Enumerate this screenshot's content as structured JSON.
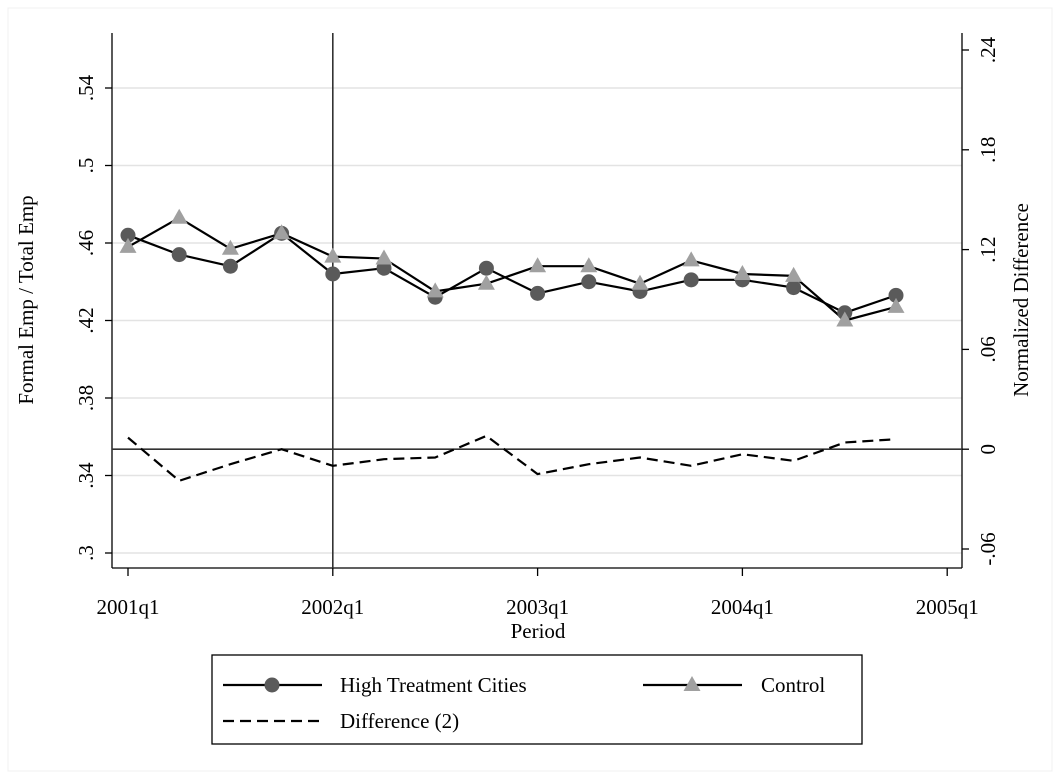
{
  "chart_data": {
    "type": "line",
    "xlabel": "Period",
    "ylabel": "Formal Emp / Total Emp",
    "y2label": "Normalized Difference",
    "x": [
      "2001q1",
      "2001q2",
      "2001q3",
      "2001q4",
      "2002q1",
      "2002q2",
      "2002q3",
      "2002q4",
      "2003q1",
      "2003q2",
      "2003q3",
      "2003q4",
      "2004q1",
      "2004q2",
      "2004q3",
      "2004q4"
    ],
    "x_ticks": [
      "2001q1",
      "2002q1",
      "2003q1",
      "2004q1",
      "2005q1"
    ],
    "xlim": [
      "2001q1",
      "2005q1"
    ],
    "ylim": [
      0.3,
      0.56
    ],
    "y_ticks": [
      0.3,
      0.34,
      0.38,
      0.42,
      0.46,
      0.5,
      0.54
    ],
    "y_tick_labels": [
      ".3",
      ".34",
      ".38",
      ".42",
      ".46",
      ".5",
      ".54"
    ],
    "y2lim": [
      -0.06,
      0.24
    ],
    "y2_ticks": [
      -0.06,
      0,
      0.06,
      0.12,
      0.18,
      0.24
    ],
    "y2_tick_labels": [
      "-.06",
      "0",
      ".06",
      ".12",
      ".18",
      ".24"
    ],
    "vertical_line_at": "2002q1",
    "horizontal_line_y2": 0,
    "grid": true,
    "legend_position": "bottom",
    "series": [
      {
        "name": "High Treatment Cities",
        "axis": "left",
        "marker": "circle",
        "line_style": "solid",
        "marker_color": "#5a5a5a",
        "values": [
          0.464,
          0.454,
          0.448,
          0.465,
          0.444,
          0.447,
          0.432,
          0.447,
          0.434,
          0.44,
          0.435,
          0.441,
          0.441,
          0.437,
          0.424,
          0.433
        ]
      },
      {
        "name": "Control",
        "axis": "left",
        "marker": "triangle",
        "line_style": "solid",
        "marker_color": "#a0a0a0",
        "values": [
          0.458,
          0.473,
          0.457,
          0.465,
          0.453,
          0.452,
          0.435,
          0.439,
          0.448,
          0.448,
          0.439,
          0.451,
          0.444,
          0.443,
          0.42,
          0.427
        ]
      },
      {
        "name": "Difference (2)",
        "axis": "right",
        "line_style": "dashed",
        "values": [
          0.007,
          -0.019,
          -0.009,
          0.0,
          -0.01,
          -0.006,
          -0.005,
          0.008,
          -0.015,
          -0.009,
          -0.005,
          -0.01,
          -0.003,
          -0.007,
          0.004,
          0.006
        ]
      }
    ]
  },
  "colors": {
    "grid": "#e3e3e3",
    "axis": "#000000",
    "circle_marker": "#5a5a5a",
    "triangle_marker": "#a0a0a0"
  }
}
